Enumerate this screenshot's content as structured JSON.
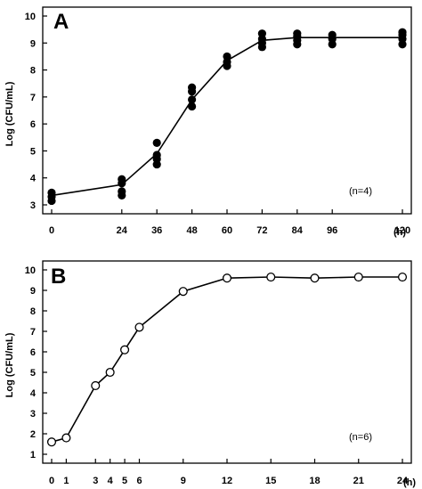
{
  "chart_data": [
    {
      "type": "line",
      "panel_label": "A",
      "ylabel": "Log (CFU/mL)",
      "x_unit": "(h)",
      "annotation": "(n=4)",
      "xlim": [
        0,
        120
      ],
      "ylim": [
        3,
        10
      ],
      "xticks": [
        0,
        24,
        36,
        48,
        60,
        72,
        84,
        96,
        120
      ],
      "yticks": [
        3,
        4,
        5,
        6,
        7,
        8,
        9,
        10
      ],
      "line": {
        "x": [
          0,
          24,
          36,
          48,
          60,
          72,
          84,
          96,
          120
        ],
        "y": [
          3.35,
          3.75,
          4.9,
          6.9,
          8.35,
          9.1,
          9.2,
          9.2,
          9.2
        ]
      },
      "points": [
        {
          "x": 0,
          "y": 3.15
        },
        {
          "x": 0,
          "y": 3.3
        },
        {
          "x": 0,
          "y": 3.45
        },
        {
          "x": 24,
          "y": 3.35
        },
        {
          "x": 24,
          "y": 3.5
        },
        {
          "x": 24,
          "y": 3.8
        },
        {
          "x": 24,
          "y": 3.95
        },
        {
          "x": 36,
          "y": 4.5
        },
        {
          "x": 36,
          "y": 4.7
        },
        {
          "x": 36,
          "y": 4.85
        },
        {
          "x": 36,
          "y": 5.3
        },
        {
          "x": 48,
          "y": 6.65
        },
        {
          "x": 48,
          "y": 6.9
        },
        {
          "x": 48,
          "y": 7.2
        },
        {
          "x": 48,
          "y": 7.35
        },
        {
          "x": 60,
          "y": 8.15
        },
        {
          "x": 60,
          "y": 8.3
        },
        {
          "x": 60,
          "y": 8.5
        },
        {
          "x": 72,
          "y": 8.85
        },
        {
          "x": 72,
          "y": 9.0
        },
        {
          "x": 72,
          "y": 9.15
        },
        {
          "x": 72,
          "y": 9.35
        },
        {
          "x": 84,
          "y": 8.95
        },
        {
          "x": 84,
          "y": 9.1
        },
        {
          "x": 84,
          "y": 9.25
        },
        {
          "x": 84,
          "y": 9.35
        },
        {
          "x": 96,
          "y": 8.95
        },
        {
          "x": 96,
          "y": 9.15
        },
        {
          "x": 96,
          "y": 9.3
        },
        {
          "x": 120,
          "y": 8.95
        },
        {
          "x": 120,
          "y": 9.15
        },
        {
          "x": 120,
          "y": 9.3
        },
        {
          "x": 120,
          "y": 9.4
        }
      ],
      "marker": "filled-circle",
      "grid": false
    },
    {
      "type": "line",
      "panel_label": "B",
      "ylabel": "Log (CFU/mL)",
      "x_unit": "(h)",
      "annotation": "(n=6)",
      "xlim": [
        0,
        24
      ],
      "ylim": [
        1,
        10
      ],
      "xticks": [
        0,
        1,
        3,
        4,
        5,
        6,
        9,
        12,
        15,
        18,
        21,
        24
      ],
      "yticks": [
        1,
        2,
        3,
        4,
        5,
        6,
        7,
        8,
        9,
        10
      ],
      "line": {
        "x": [
          0,
          1,
          3,
          4,
          5,
          6,
          9,
          12,
          15,
          18,
          21,
          24
        ],
        "y": [
          1.6,
          1.8,
          4.35,
          5.0,
          6.1,
          7.2,
          8.95,
          9.6,
          9.65,
          9.6,
          9.65,
          9.65
        ]
      },
      "points": [],
      "marker": "open-circle",
      "grid": false
    }
  ]
}
